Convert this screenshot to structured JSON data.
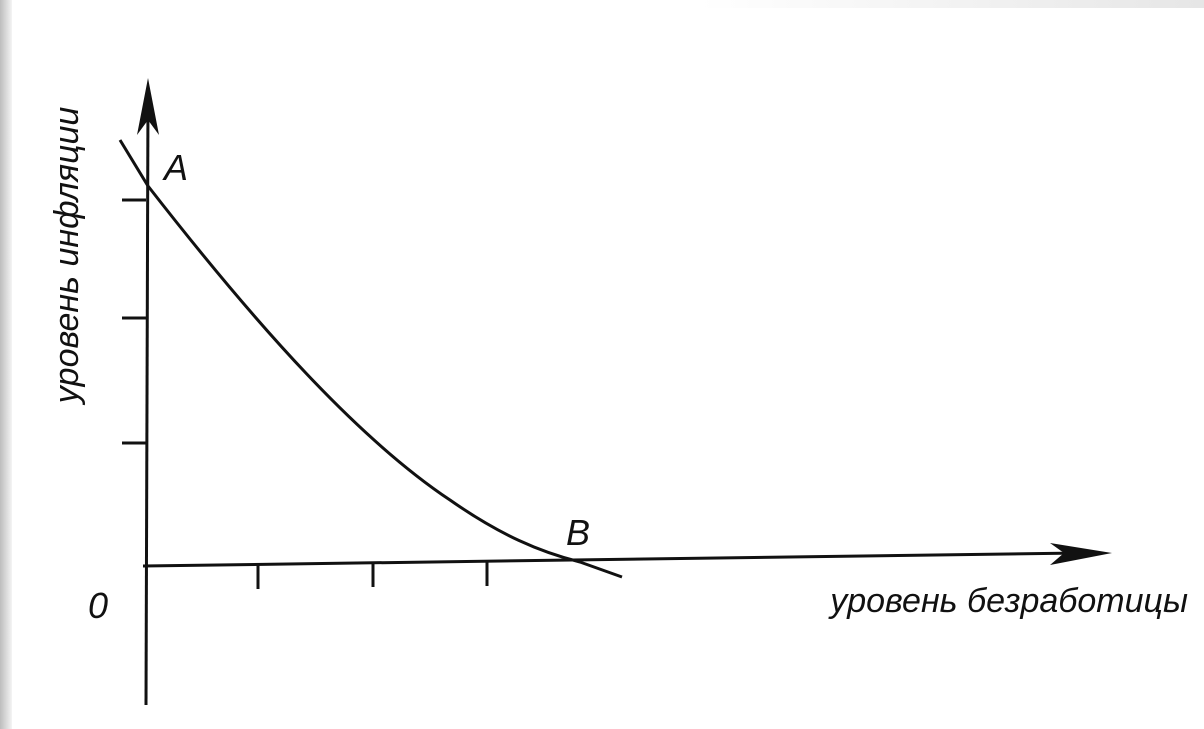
{
  "axes": {
    "y_label": "уровень инфляции",
    "x_label": "уровень безработицы",
    "origin": "0"
  },
  "points": {
    "a": "A",
    "b": "B"
  }
}
